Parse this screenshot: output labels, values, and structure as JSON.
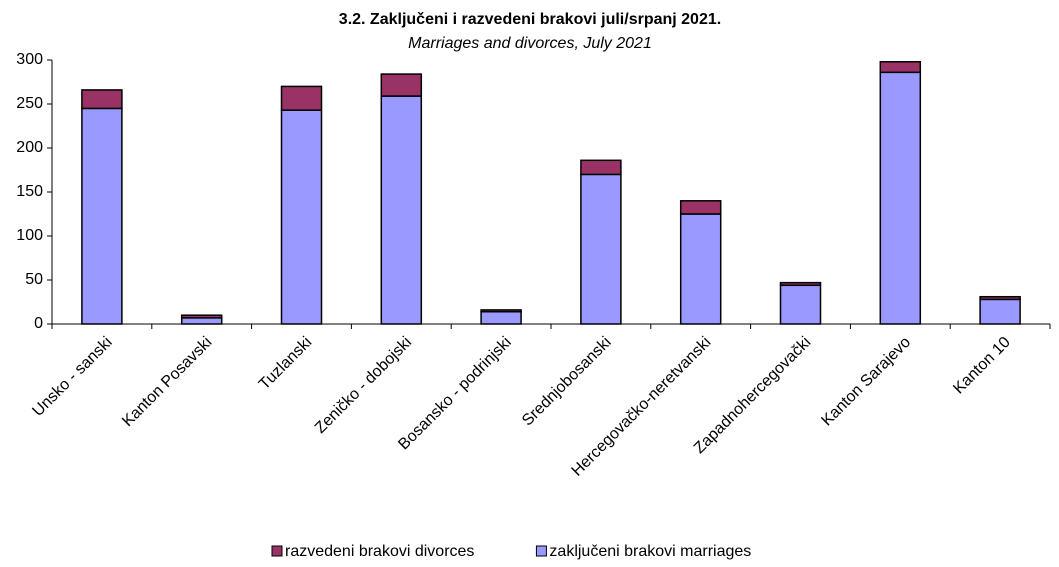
{
  "chart_data": {
    "type": "stacked_bar",
    "title": "3.2. Zaključeni i razvedeni brakovi juli/srpanj 2021.",
    "subtitle": "Marriages and divorces, July 2021",
    "categories": [
      "Unsko - sanski",
      "Kanton Posavski",
      "Tuzlanski",
      "Zeničko - dobojski",
      "Bosansko - podrinjski",
      "Srednjobosanski",
      "Hercegovačko-neretvanski",
      "Zapadnohercegovački",
      "Kanton Sarajevo",
      "Kanton 10"
    ],
    "series": [
      {
        "name": "razvedeni brakovi divorces",
        "color": "#993366",
        "values": [
          21,
          3,
          27,
          25,
          2,
          16,
          15,
          3,
          12,
          3
        ]
      },
      {
        "name": "zaključeni brakovi marriages",
        "color": "#9999ff",
        "values": [
          245,
          7,
          243,
          259,
          14,
          170,
          125,
          44,
          286,
          28
        ]
      }
    ],
    "ylim": [
      0,
      300
    ],
    "yticks": [
      0,
      50,
      100,
      150,
      200,
      250,
      300
    ],
    "grid": false,
    "legend": "bottom"
  }
}
